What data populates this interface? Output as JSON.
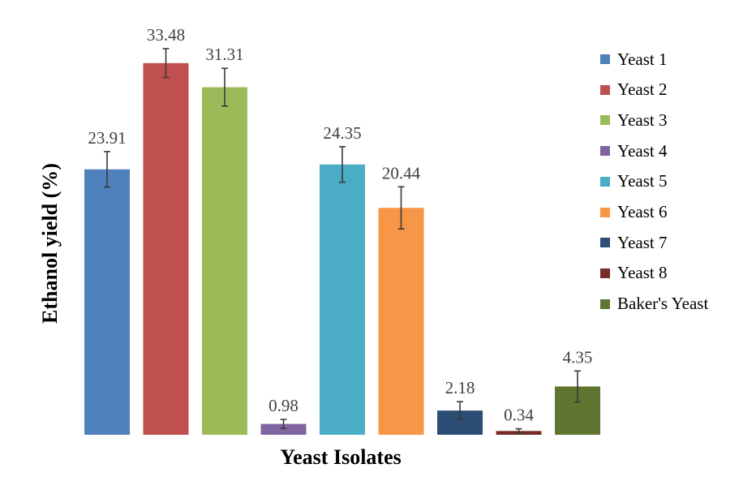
{
  "chart_data": {
    "type": "bar",
    "title": "",
    "xlabel": "Yeast Isolates",
    "ylabel": "Ethanol yield (%)",
    "ylim": [
      0,
      35
    ],
    "grid": false,
    "legend_position": "right",
    "categories": [
      "Yeast 1",
      "Yeast 2",
      "Yeast 3",
      "Yeast 4",
      "Yeast 5",
      "Yeast 6",
      "Yeast 7",
      "Yeast 8",
      "Baker's Yeast"
    ],
    "values": [
      23.91,
      33.48,
      31.31,
      0.98,
      24.35,
      20.44,
      2.18,
      0.34,
      4.35
    ],
    "value_labels": [
      "23.91",
      "33.48",
      "31.31",
      "0.98",
      "24.35",
      "20.44",
      "2.18",
      "0.34",
      "4.35"
    ],
    "error": [
      1.6,
      1.3,
      1.7,
      0.4,
      1.6,
      1.9,
      0.8,
      0.2,
      1.4
    ],
    "colors": [
      "#4f81bd",
      "#c0504d",
      "#9bbb59",
      "#8064a2",
      "#4bacc6",
      "#f79646",
      "#2c4d75",
      "#772c2a",
      "#5f7530"
    ]
  }
}
